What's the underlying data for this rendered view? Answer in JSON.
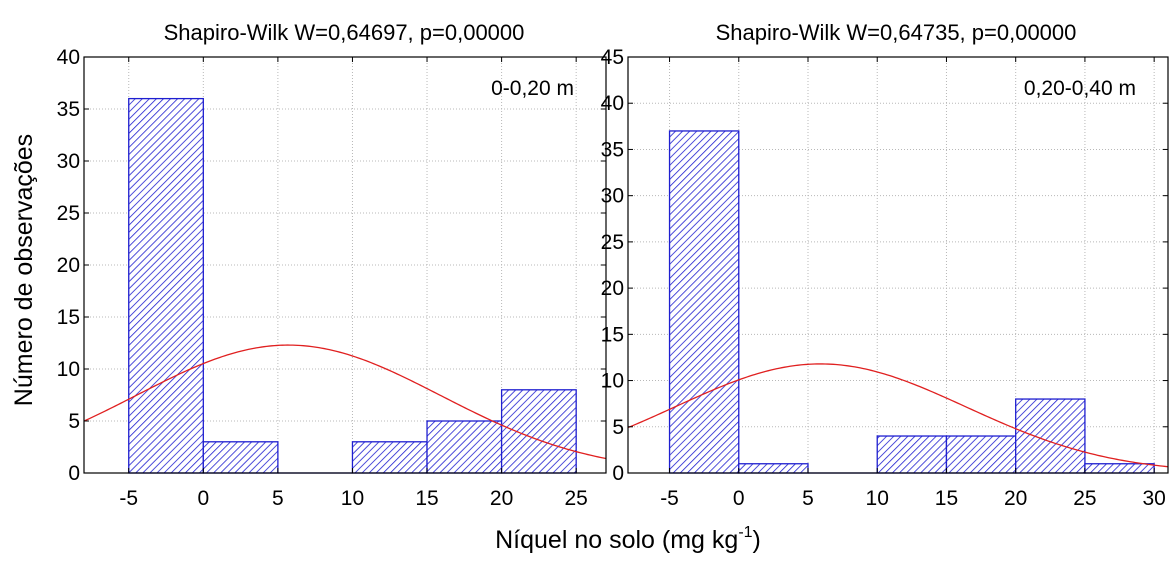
{
  "figure": {
    "xlabel_main": "Níquel no solo (mg kg",
    "xlabel_sup": "-1",
    "xlabel_close": ")",
    "ylabel": "Número de observações"
  },
  "chart_data": [
    {
      "type": "bar",
      "title": "Shapiro-Wilk W=0,64697, p=0,00000",
      "annotation": "0-0,20 m",
      "xlim": [
        -8,
        27
      ],
      "ylim": [
        0,
        40
      ],
      "xticks": [
        -5,
        0,
        5,
        10,
        15,
        20,
        25
      ],
      "yticks": [
        0,
        5,
        10,
        15,
        20,
        25,
        30,
        35,
        40
      ],
      "bins": [
        {
          "from": -5,
          "to": 0,
          "count": 36
        },
        {
          "from": 0,
          "to": 5,
          "count": 3
        },
        {
          "from": 5,
          "to": 10,
          "count": 0
        },
        {
          "from": 10,
          "to": 15,
          "count": 3
        },
        {
          "from": 15,
          "to": 20,
          "count": 5
        },
        {
          "from": 20,
          "to": 25,
          "count": 8
        }
      ],
      "normal_fit": {
        "mean": 5.7,
        "peak": 12.3,
        "sd": 10.2,
        "color": "#e02020"
      },
      "bar_color": "#1f1fd0"
    },
    {
      "type": "bar",
      "title": "Shapiro-Wilk W=0,64735, p=0,00000",
      "annotation": "0,20-0,40 m",
      "xlim": [
        -8,
        31
      ],
      "ylim": [
        0,
        45
      ],
      "xticks": [
        -5,
        0,
        5,
        10,
        15,
        20,
        25,
        30
      ],
      "yticks": [
        0,
        5,
        10,
        15,
        20,
        25,
        30,
        35,
        40,
        45
      ],
      "bins": [
        {
          "from": -5,
          "to": 0,
          "count": 37
        },
        {
          "from": 0,
          "to": 5,
          "count": 1
        },
        {
          "from": 5,
          "to": 10,
          "count": 0
        },
        {
          "from": 10,
          "to": 15,
          "count": 4
        },
        {
          "from": 15,
          "to": 20,
          "count": 4
        },
        {
          "from": 20,
          "to": 25,
          "count": 8
        },
        {
          "from": 25,
          "to": 30,
          "count": 1
        }
      ],
      "normal_fit": {
        "mean": 5.9,
        "peak": 11.8,
        "sd": 10.5,
        "color": "#e02020"
      },
      "bar_color": "#1f1fd0"
    }
  ]
}
